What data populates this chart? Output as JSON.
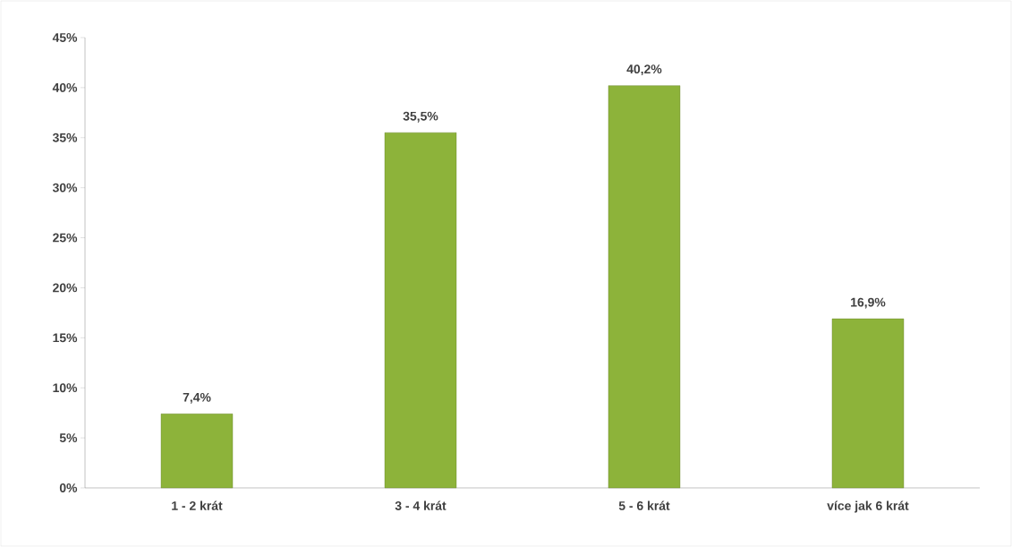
{
  "chart_data": {
    "type": "bar",
    "categories": [
      "1 - 2 krát",
      "3 - 4 krát",
      "5 - 6 krát",
      "více jak 6 krát"
    ],
    "values": [
      7.4,
      35.5,
      40.2,
      16.9
    ],
    "color": "#8db33a",
    "value_labels": [
      "7,4%",
      "35,5%",
      "40,2%",
      "16,9%"
    ],
    "ylim": [
      0,
      45
    ],
    "yticks": [
      {
        "value": 0,
        "label": "0%"
      },
      {
        "value": 5,
        "label": "5%"
      },
      {
        "value": 10,
        "label": "10%"
      },
      {
        "value": 15,
        "label": "15%"
      },
      {
        "value": 20,
        "label": "20%"
      },
      {
        "value": 25,
        "label": "25%"
      },
      {
        "value": 30,
        "label": "30%"
      },
      {
        "value": 35,
        "label": "35%"
      },
      {
        "value": 40,
        "label": "40%"
      },
      {
        "value": 45,
        "label": "45%"
      }
    ],
    "grid": false
  }
}
